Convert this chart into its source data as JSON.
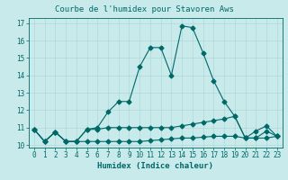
{
  "title": "Courbe de l'humidex pour Stavoren Aws",
  "xlabel": "Humidex (Indice chaleur)",
  "ylabel": "",
  "bg_color": "#c8eaea",
  "grid_color": "#b0d8d8",
  "line_color": "#006868",
  "xlim": [
    -0.5,
    23.5
  ],
  "ylim": [
    9.85,
    17.3
  ],
  "xticks": [
    0,
    1,
    2,
    3,
    4,
    5,
    6,
    7,
    8,
    9,
    10,
    11,
    12,
    13,
    14,
    15,
    16,
    17,
    18,
    19,
    20,
    21,
    22,
    23
  ],
  "yticks": [
    10,
    11,
    12,
    13,
    14,
    15,
    16,
    17
  ],
  "line1_x": [
    0,
    1,
    2,
    3,
    4,
    5,
    6,
    7,
    8,
    9,
    10,
    11,
    12,
    13,
    14,
    15,
    16,
    17,
    18,
    19,
    20,
    21,
    22,
    23
  ],
  "line1_y": [
    10.9,
    10.2,
    10.75,
    10.2,
    10.2,
    10.2,
    10.2,
    10.2,
    10.2,
    10.2,
    10.2,
    10.25,
    10.3,
    10.35,
    10.4,
    10.4,
    10.45,
    10.5,
    10.5,
    10.5,
    10.4,
    10.4,
    10.4,
    10.5
  ],
  "line2_x": [
    0,
    1,
    2,
    3,
    4,
    5,
    6,
    7,
    8,
    9,
    10,
    11,
    12,
    13,
    14,
    15,
    16,
    17,
    18,
    19,
    20,
    21,
    22,
    23
  ],
  "line2_y": [
    10.9,
    10.2,
    10.75,
    10.2,
    10.2,
    10.9,
    10.9,
    11.0,
    11.0,
    11.0,
    11.0,
    11.0,
    11.0,
    11.0,
    11.1,
    11.2,
    11.3,
    11.4,
    11.5,
    11.65,
    10.4,
    10.4,
    10.8,
    10.5
  ],
  "line3_x": [
    0,
    1,
    2,
    3,
    4,
    5,
    6,
    7,
    8,
    9,
    10,
    11,
    12,
    13,
    14,
    15,
    16,
    17,
    18,
    19,
    20,
    21,
    22,
    23
  ],
  "line3_y": [
    10.9,
    10.2,
    10.75,
    10.2,
    10.2,
    10.9,
    11.0,
    11.9,
    12.5,
    12.5,
    14.5,
    15.6,
    15.6,
    14.0,
    16.85,
    16.75,
    15.3,
    13.7,
    12.5,
    11.65,
    10.4,
    10.8,
    11.1,
    10.5
  ],
  "title_fontsize": 6.5,
  "xlabel_fontsize": 6.5,
  "tick_fontsize": 5.5,
  "marker_size": 2.5,
  "line_width": 0.8
}
